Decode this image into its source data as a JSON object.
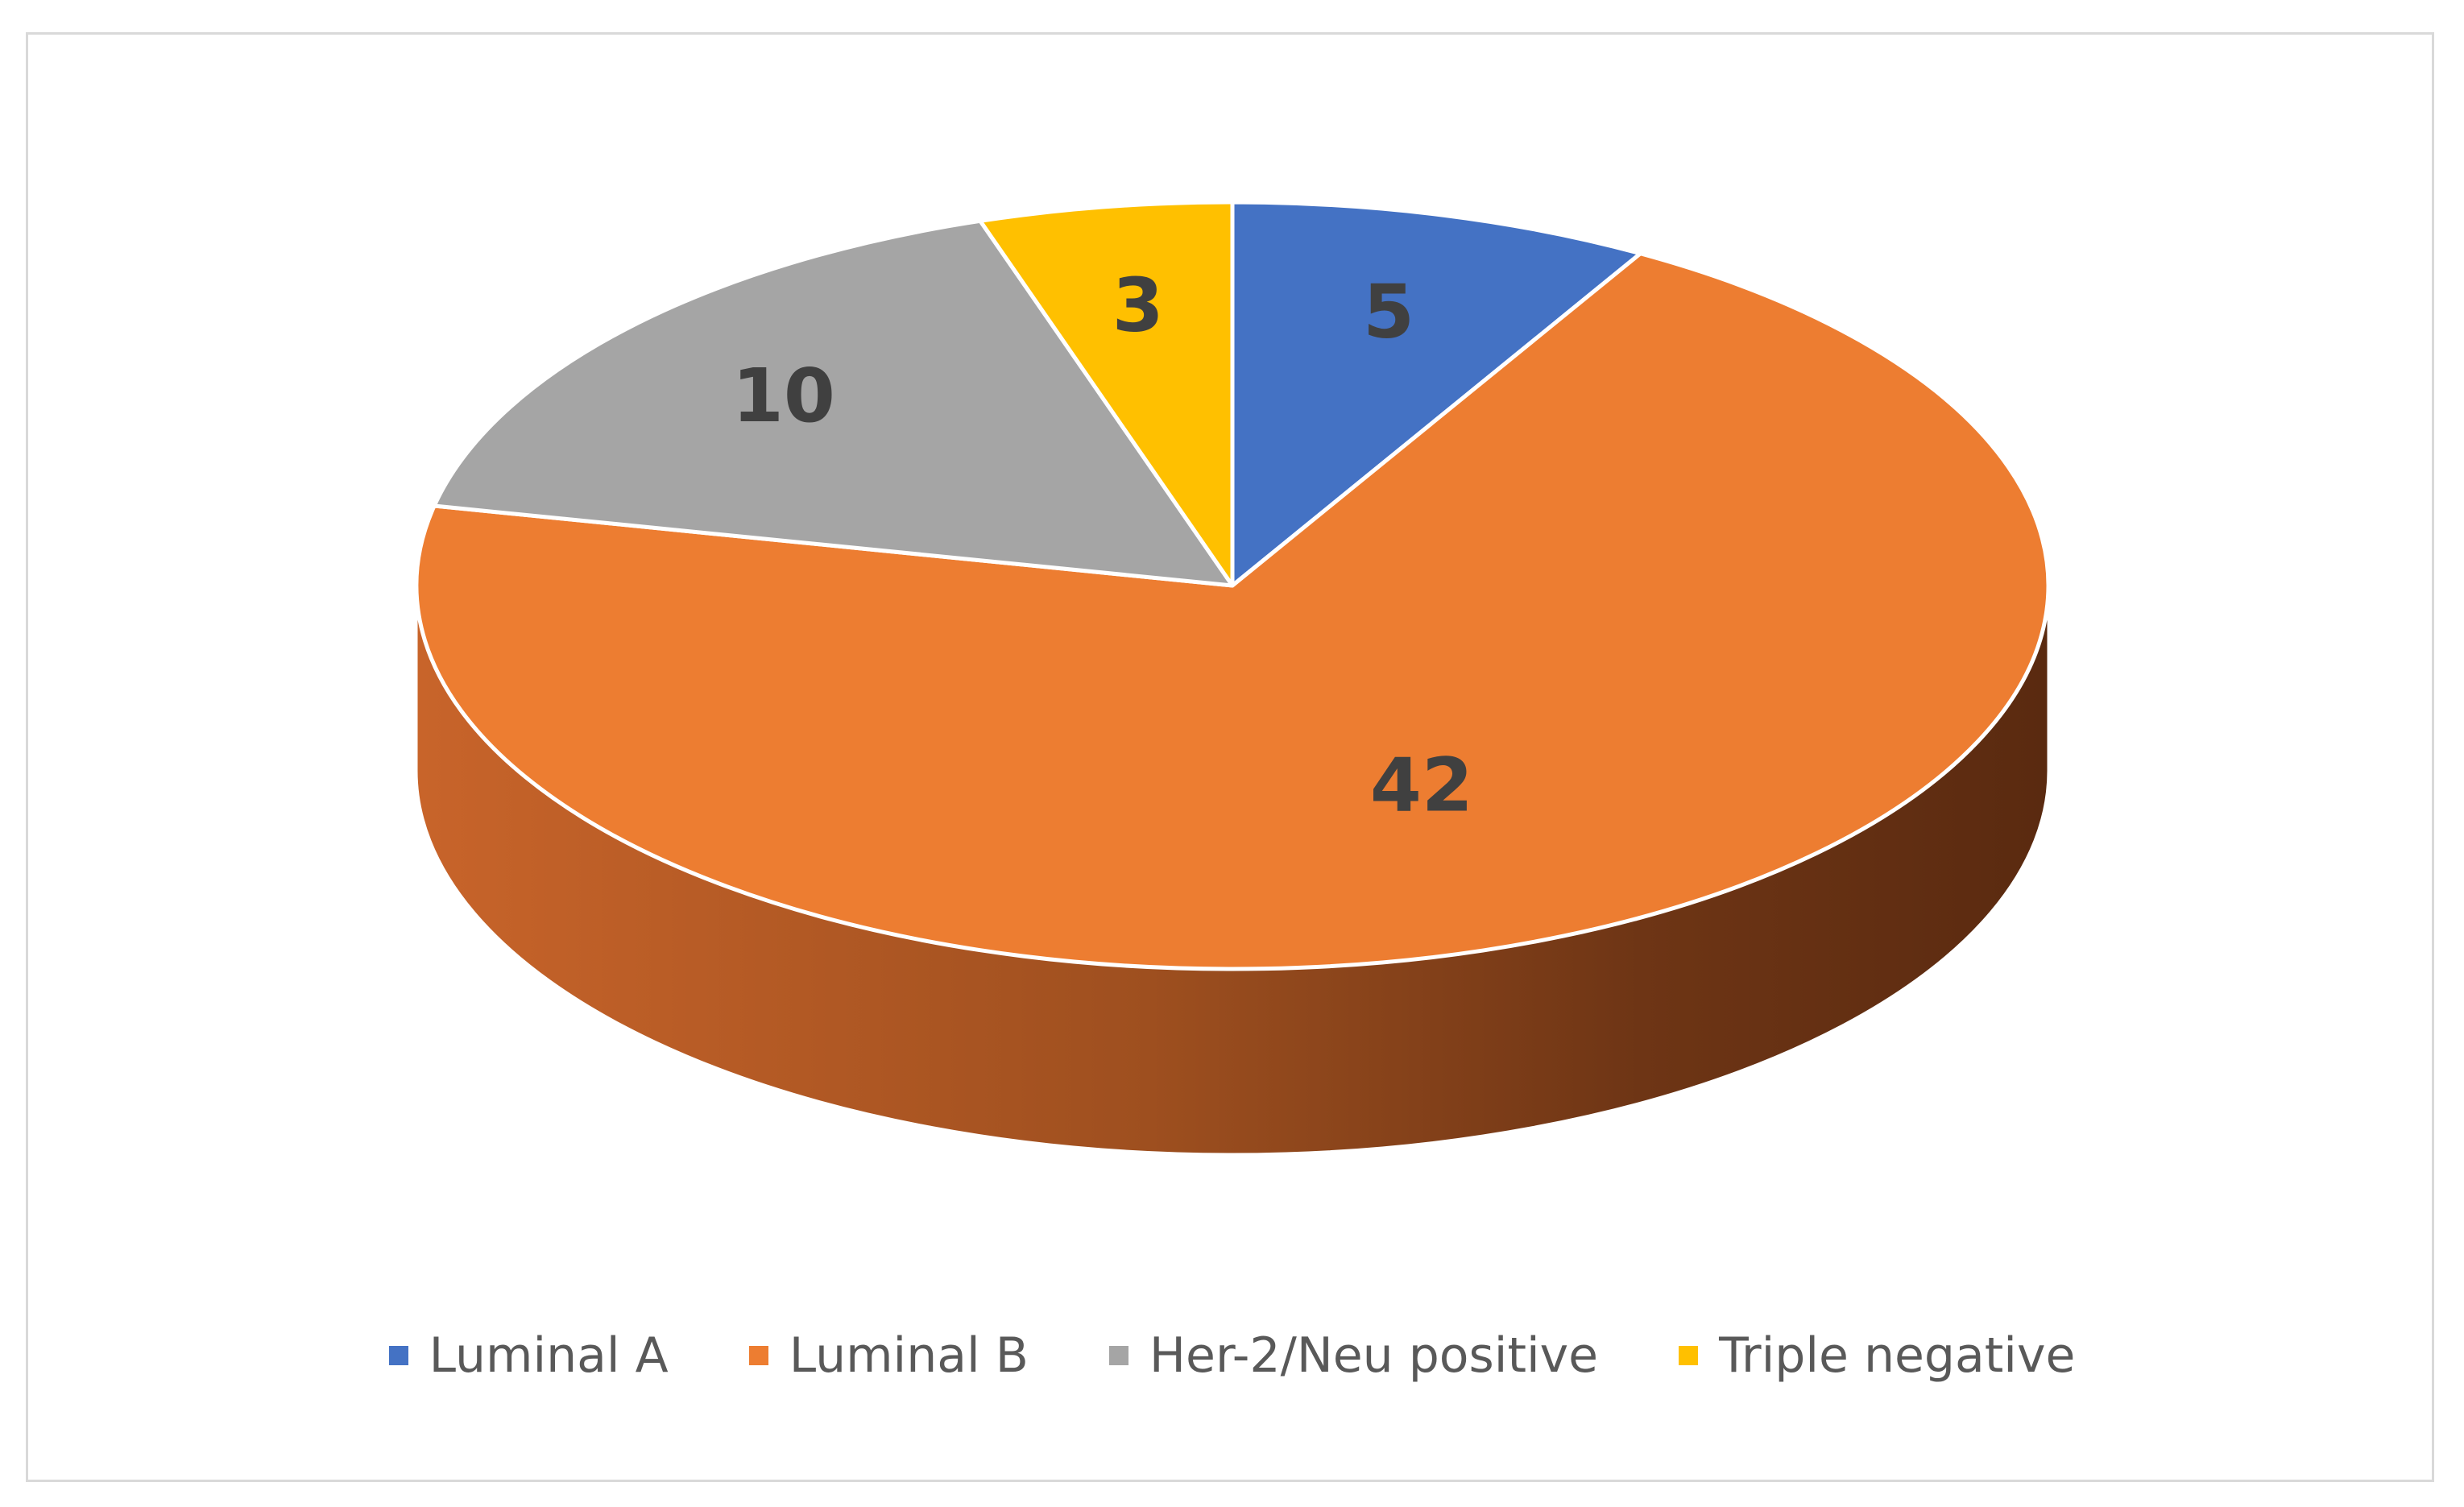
{
  "chart_data": {
    "type": "pie",
    "title": "",
    "categories": [
      "Luminal A",
      "Luminal B",
      "Her-2/Neu positive",
      "Triple negative"
    ],
    "values": [
      5,
      42,
      10,
      3
    ],
    "data_labels": [
      "5",
      "42",
      "10",
      "3"
    ],
    "colors": [
      "#4472C4",
      "#ED7D31",
      "#A5A5A5",
      "#FFC000"
    ],
    "style": "3d",
    "legend_position": "bottom"
  },
  "legend": {
    "items": [
      {
        "label": "Luminal A",
        "color": "#4472C4"
      },
      {
        "label": "Luminal B",
        "color": "#ED7D31"
      },
      {
        "label": "Her-2/Neu positive",
        "color": "#A5A5A5"
      },
      {
        "label": "Triple negative",
        "color": "#FFC000"
      }
    ]
  }
}
